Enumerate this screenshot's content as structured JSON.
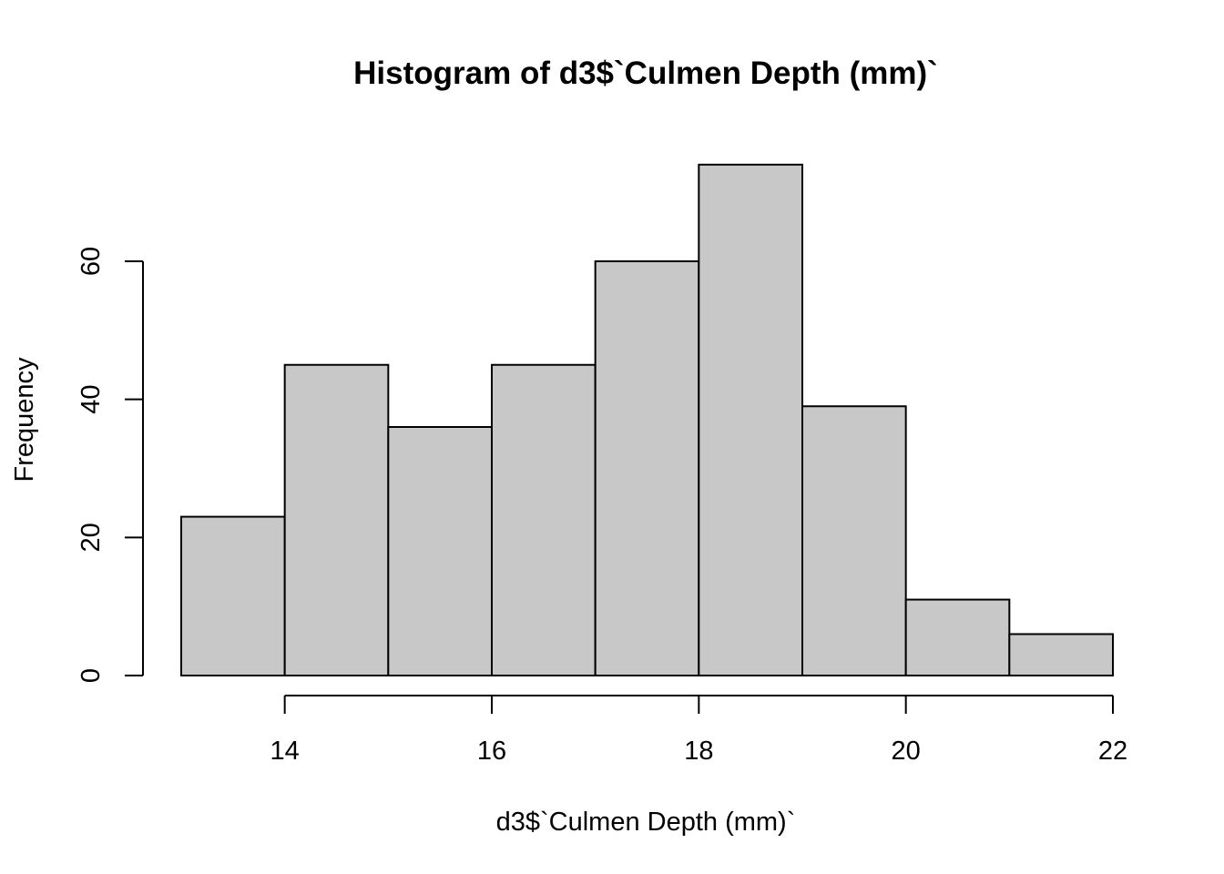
{
  "chart_data": {
    "type": "bar",
    "subtype": "histogram",
    "title": "Histogram of d3$`Culmen Depth (mm)`",
    "xlabel": "d3$`Culmen Depth (mm)`",
    "ylabel": "Frequency",
    "bin_edges": [
      13,
      14,
      15,
      16,
      17,
      18,
      19,
      20,
      21,
      22
    ],
    "values": [
      23,
      45,
      36,
      45,
      60,
      74,
      39,
      11,
      6
    ],
    "xlim": [
      13,
      22
    ],
    "ylim": [
      0,
      74
    ],
    "x_ticks": [
      14,
      16,
      18,
      20,
      22
    ],
    "x_tick_labels": [
      "14",
      "16",
      "18",
      "20",
      "22"
    ],
    "y_ticks": [
      0,
      20,
      40,
      60
    ],
    "y_tick_labels": [
      "0",
      "20",
      "40",
      "60"
    ],
    "grid": false,
    "legend": "none",
    "colors": {
      "bar_fill": "#c8c8c8",
      "bar_stroke": "#000000",
      "axis": "#000000",
      "background": "#ffffff"
    }
  }
}
